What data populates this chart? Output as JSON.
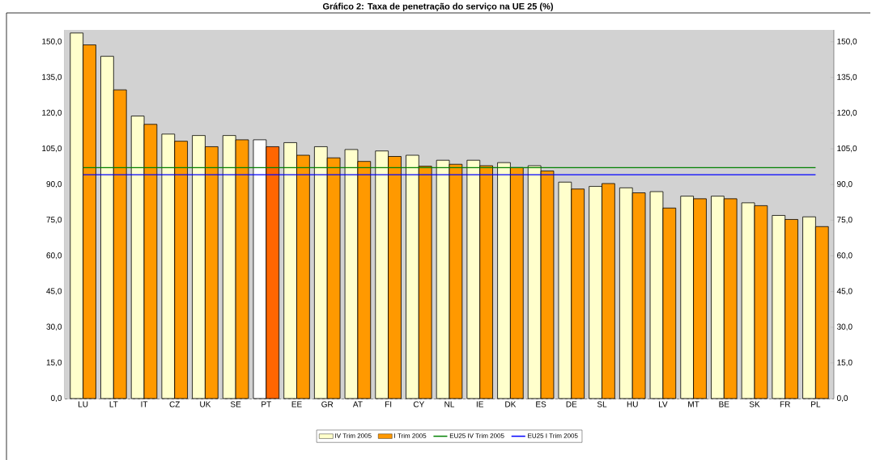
{
  "chart_data": {
    "type": "bar",
    "title": "Gráfico 2: Taxa de penetração do serviço na UE 25 (%)",
    "categories": [
      "LU",
      "LT",
      "IT",
      "CZ",
      "UK",
      "SE",
      "PT",
      "EE",
      "GR",
      "AT",
      "FI",
      "CY",
      "NL",
      "IE",
      "DK",
      "ES",
      "DE",
      "SL",
      "HU",
      "LV",
      "MT",
      "BE",
      "SK",
      "FR",
      "PL"
    ],
    "series": [
      {
        "name": "IV Trim 2005",
        "color": "#ffffcc",
        "colors": [
          "#ffffcc",
          "#ffffcc",
          "#ffffcc",
          "#ffffcc",
          "#ffffcc",
          "#ffffcc",
          "#ffffff",
          "#ffffcc",
          "#ffffcc",
          "#ffffcc",
          "#ffffcc",
          "#ffffcc",
          "#ffffcc",
          "#ffffcc",
          "#ffffcc",
          "#ffffcc",
          "#ffffcc",
          "#ffffcc",
          "#ffffcc",
          "#ffffcc",
          "#ffffcc",
          "#ffffcc",
          "#ffffcc",
          "#ffffcc",
          "#ffffcc"
        ],
        "values": [
          153.7,
          143.9,
          118.8,
          111.2,
          110.6,
          110.6,
          108.8,
          107.6,
          105.9,
          104.7,
          104.1,
          102.3,
          100.2,
          100.2,
          99.2,
          97.9,
          91.0,
          89.2,
          88.6,
          87.0,
          85.1,
          85.1,
          82.3,
          77.0,
          76.4
        ]
      },
      {
        "name": "I Trim 2005",
        "color": "#ff9900",
        "colors": [
          "#ff9900",
          "#ff9900",
          "#ff9900",
          "#ff9900",
          "#ff9900",
          "#ff9900",
          "#ff6600",
          "#ff9900",
          "#ff9900",
          "#ff9900",
          "#ff9900",
          "#ff9900",
          "#ff9900",
          "#ff9900",
          "#ff9900",
          "#ff9900",
          "#ff9900",
          "#ff9900",
          "#ff9900",
          "#ff9900",
          "#ff9900",
          "#ff9900",
          "#ff9900",
          "#ff9900",
          "#ff9900"
        ],
        "values": [
          148.7,
          129.8,
          115.3,
          108.2,
          105.9,
          108.8,
          105.9,
          102.3,
          101.2,
          99.7,
          101.8,
          97.7,
          98.5,
          97.9,
          97.1,
          95.7,
          88.1,
          90.4,
          86.5,
          80.1,
          84.0,
          84.0,
          81.1,
          75.3,
          72.3
        ]
      },
      {
        "name": "EU25 IV Trim 2005",
        "type": "line",
        "color": "#008000",
        "values": [
          97.1,
          97.1,
          97.1,
          97.1,
          97.1,
          97.1,
          97.1,
          97.1,
          97.1,
          97.1,
          97.1,
          97.1,
          97.1,
          97.1,
          97.1,
          97.1,
          97.1,
          97.1,
          97.1,
          97.1,
          97.1,
          97.1,
          97.1,
          97.1,
          97.1
        ]
      },
      {
        "name": "EU25 I Trim 2005",
        "type": "line",
        "color": "#0000ff",
        "values": [
          94.1,
          94.1,
          94.1,
          94.1,
          94.1,
          94.1,
          94.1,
          94.1,
          94.1,
          94.1,
          94.1,
          94.1,
          94.1,
          94.1,
          94.1,
          94.1,
          94.1,
          94.1,
          94.1,
          94.1,
          94.1,
          94.1,
          94.1,
          94.1,
          94.1
        ]
      }
    ],
    "ylim": [
      0,
      155
    ],
    "yticks": [
      {
        "value": 0,
        "label": "0,0"
      },
      {
        "value": 15,
        "label": "15,0"
      },
      {
        "value": 30,
        "label": "30,0"
      },
      {
        "value": 45,
        "label": "45,0"
      },
      {
        "value": 60,
        "label": "60,0"
      },
      {
        "value": 75,
        "label": "75,0"
      },
      {
        "value": 90,
        "label": "90,0"
      },
      {
        "value": 105,
        "label": "105,0"
      },
      {
        "value": 120,
        "label": "120,0"
      },
      {
        "value": 135,
        "label": "135,0"
      },
      {
        "value": 150,
        "label": "150,0"
      }
    ],
    "y2lim": [
      0,
      155
    ],
    "y2ticks": [
      {
        "value": 0,
        "label": "0,0"
      },
      {
        "value": 15,
        "label": "15,0"
      },
      {
        "value": 30,
        "label": "30,0"
      },
      {
        "value": 45,
        "label": "45,0"
      },
      {
        "value": 60,
        "label": "60,0"
      },
      {
        "value": 75,
        "label": "75,0"
      },
      {
        "value": 90,
        "label": "90,0"
      },
      {
        "value": 105,
        "label": "105,0"
      },
      {
        "value": 120,
        "label": "120,0"
      },
      {
        "value": 135,
        "label": "135,0"
      },
      {
        "value": 150,
        "label": "150,0"
      }
    ],
    "grid": "y",
    "legend": "bottom"
  }
}
